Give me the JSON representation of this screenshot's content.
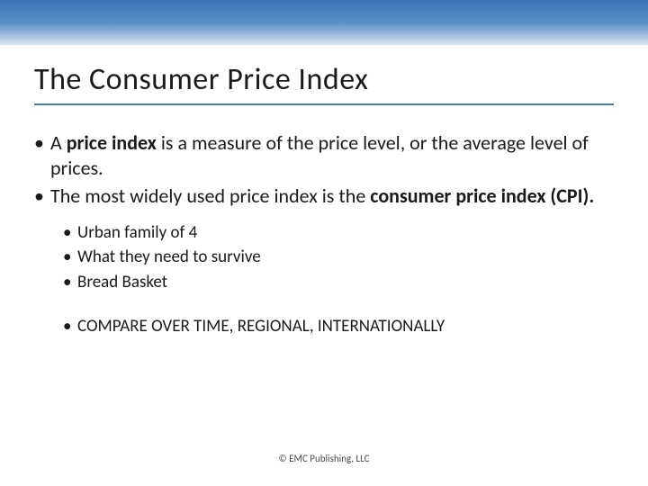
{
  "colors": {
    "gradient_top": "#3a74b8",
    "gradient_mid": "#5a8fc8",
    "gradient_bottom": "#d9e5f2",
    "underline": "#4a7db5",
    "text": "#1a1a1a",
    "footer_text": "#4a4a4a",
    "background": "#ffffff"
  },
  "typography": {
    "title_size": 34,
    "main_bullet_size": 22,
    "sub_bullet_size": 19,
    "footer_size": 11,
    "font_family": "Calibri"
  },
  "title": "The Consumer Price Index",
  "bullets": {
    "b1_pre": "A ",
    "b1_bold": "price index",
    "b1_post": " is a measure of the price level, or the average level of prices.",
    "b2_pre": "The most widely used price index is the ",
    "b2_bold": "consumer price index (CPI).",
    "sub1": "Urban family of 4",
    "sub2": "What they need to survive",
    "sub3": "Bread Basket",
    "sub4": "COMPARE OVER TIME, REGIONAL, INTERNATIONALLY"
  },
  "footer": "© EMC Publishing, LLC"
}
